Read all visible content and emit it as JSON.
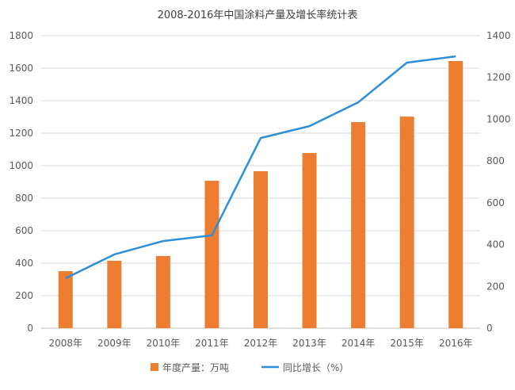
{
  "chart_data": {
    "type": "bar+line",
    "title": "2008-2016年中国涂料产量及增长率统计表",
    "categories": [
      "2008年",
      "2009年",
      "2010年",
      "2011年",
      "2012年",
      "2013年",
      "2014年",
      "2015年",
      "2016年"
    ],
    "series": [
      {
        "name": "年度产量：万吨",
        "type": "bar",
        "axis": "left",
        "color": "#ED7D31",
        "values": [
          351,
          415,
          444,
          907,
          966,
          1078,
          1268,
          1302,
          1644
        ]
      },
      {
        "name": "同比增长（%）",
        "type": "line",
        "axis": "right",
        "color": "#2E8FD6",
        "values": [
          239,
          353,
          417,
          444,
          910,
          967,
          1081,
          1271,
          1301
        ]
      }
    ],
    "left_axis": {
      "ylim": [
        0,
        1800
      ],
      "ticks": [
        "0",
        "200",
        "400",
        "600",
        "800",
        "1000",
        "1200",
        "1400",
        "1600",
        "1800"
      ]
    },
    "right_axis": {
      "ylim": [
        0,
        1400
      ],
      "ticks": [
        "0",
        "200",
        "400",
        "600",
        "800",
        "1000",
        "1200",
        "1400"
      ]
    },
    "grid": true,
    "legend": "bottom"
  }
}
